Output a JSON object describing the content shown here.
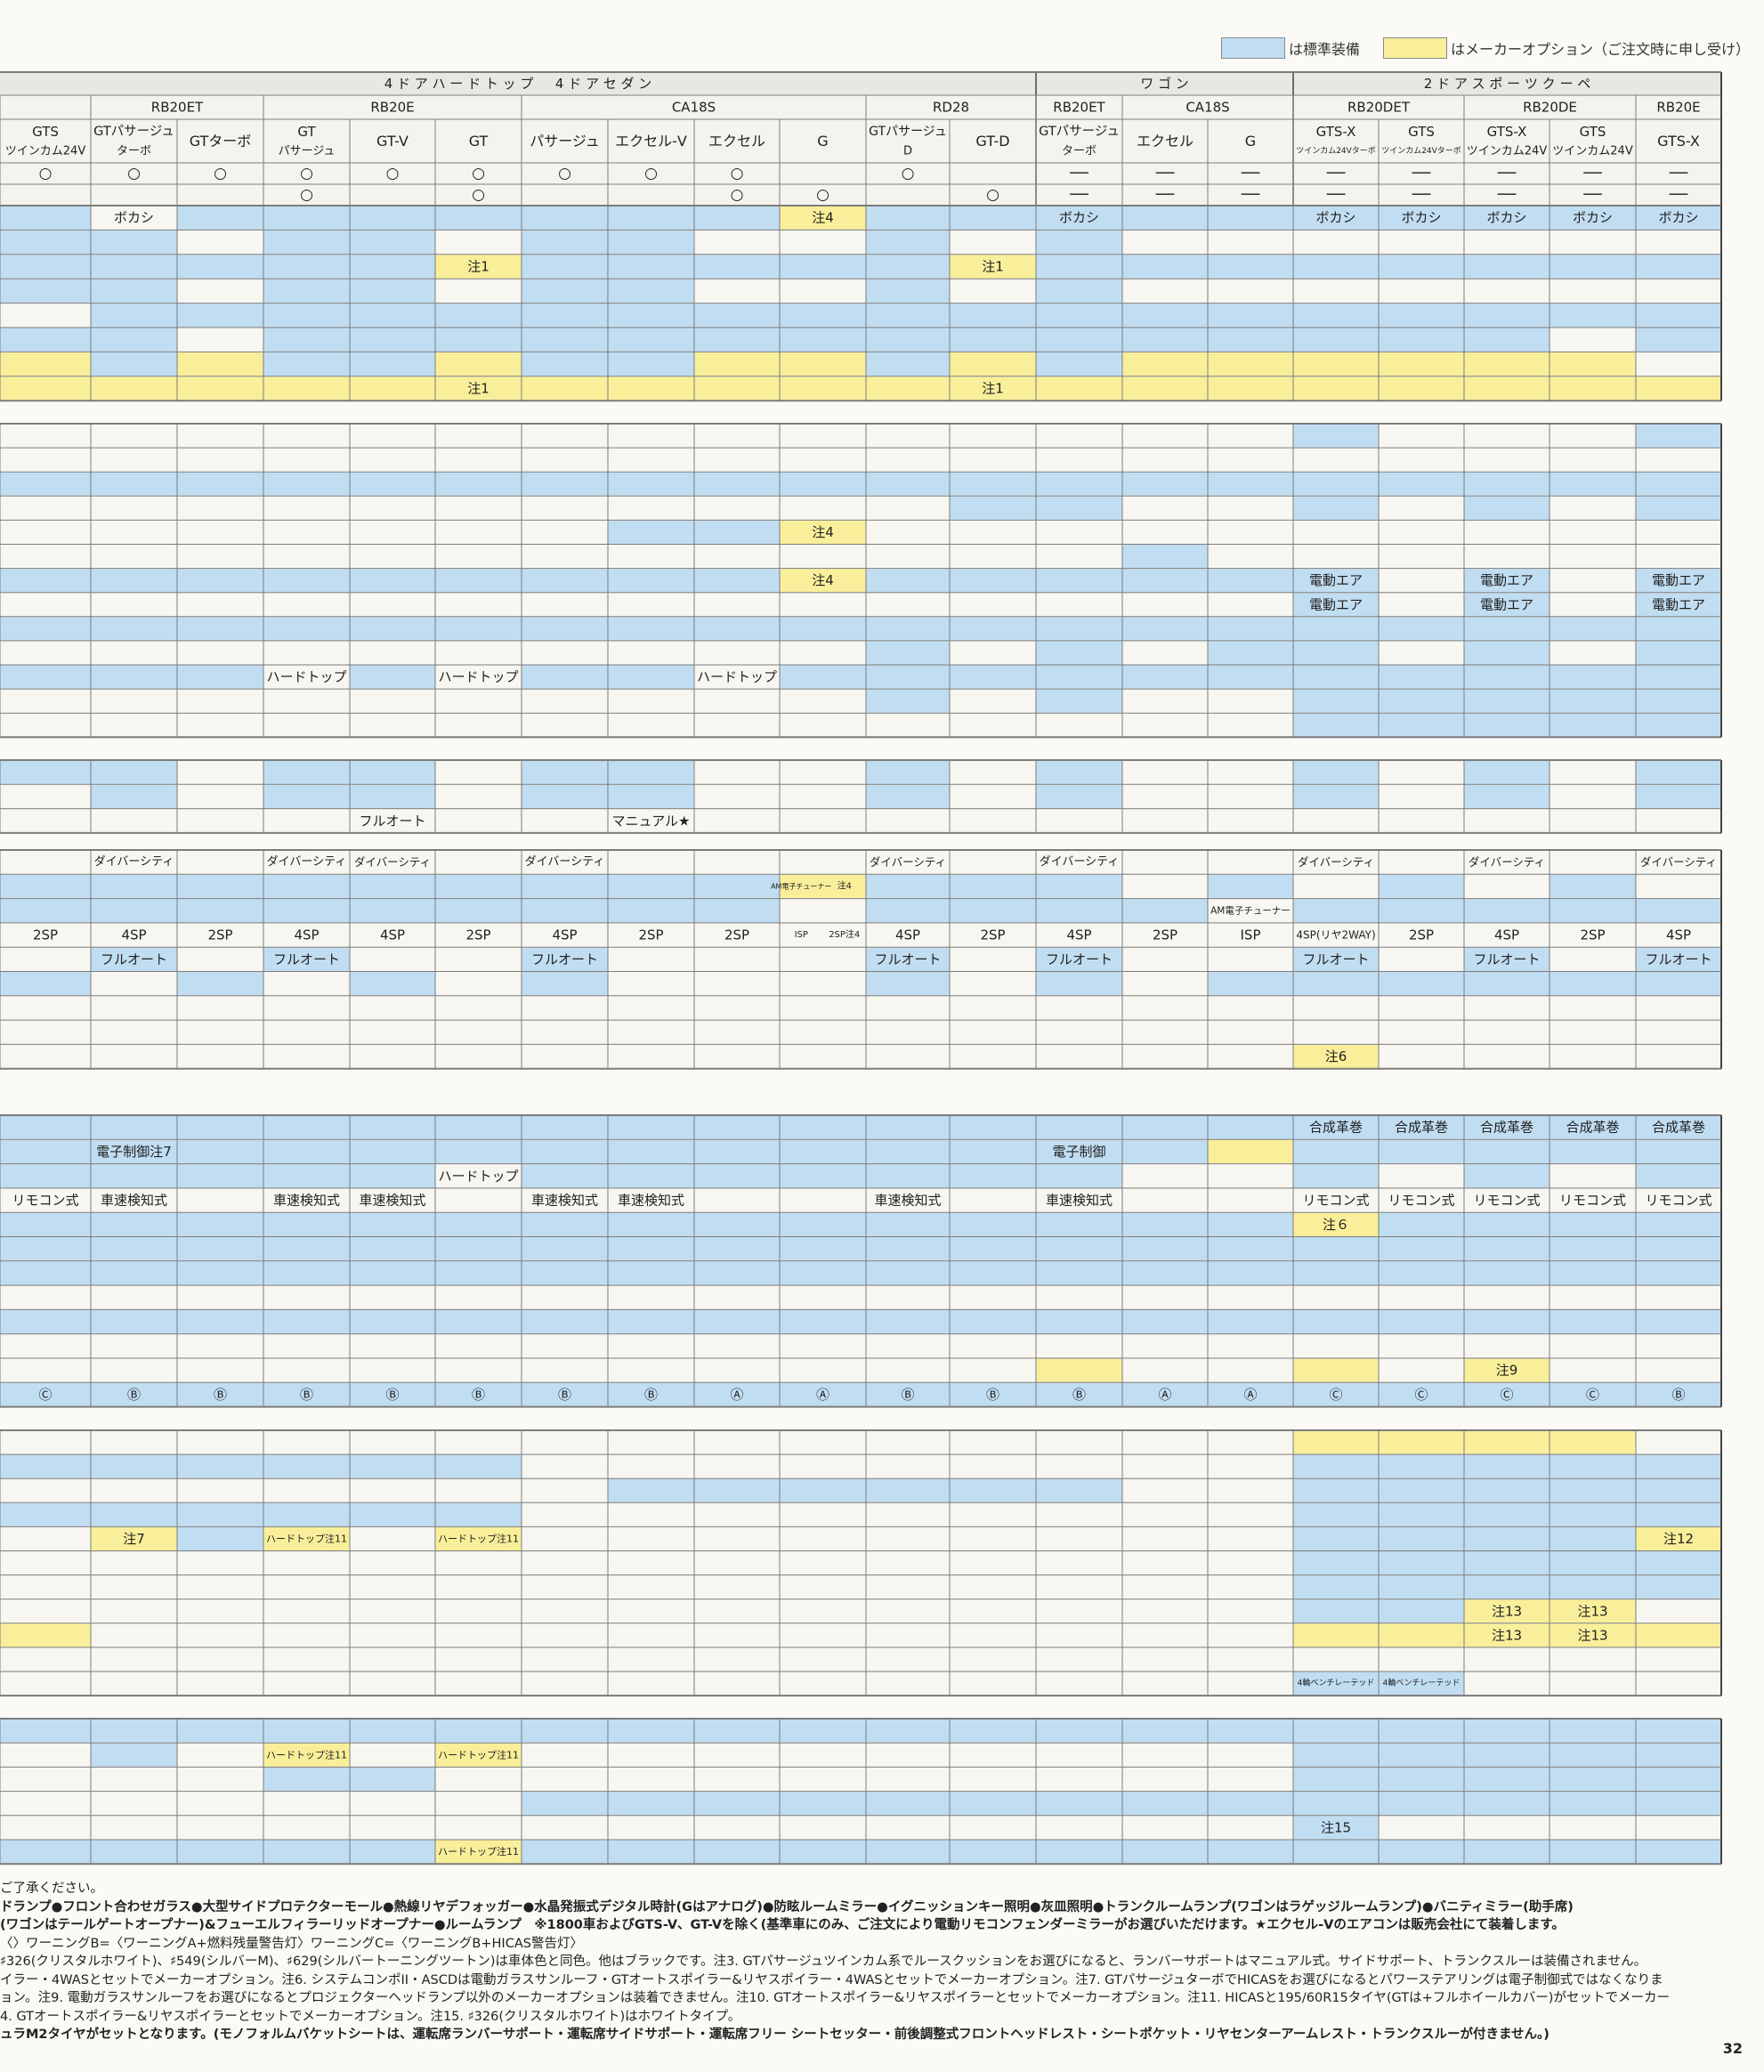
{
  "colors": {
    "standard": "#c1ddf2",
    "option": "#f9ef9a",
    "grid": "#7c7c7c",
    "header": "#f4f3ee"
  },
  "legend": {
    "standard_label": "は標準装備",
    "option_label": "はメーカーオプション（ご注文時に申し受け）"
  },
  "groups": [
    {
      "label": "4ドアハードトップ　4ドアセダン",
      "from": 0,
      "to": 11
    },
    {
      "label": "ワゴン",
      "from": 12,
      "to": 14
    },
    {
      "label": "2ドアスポーツクーペ",
      "from": 15,
      "to": 19
    }
  ],
  "engines": [
    {
      "label": "",
      "from": 0,
      "to": 0
    },
    {
      "label": "RB20ET",
      "from": 1,
      "to": 2
    },
    {
      "label": "RB20E",
      "from": 3,
      "to": 5
    },
    {
      "label": "CA18S",
      "from": 6,
      "to": 9
    },
    {
      "label": "RD28",
      "from": 10,
      "to": 11
    },
    {
      "label": "RB20ET",
      "from": 12,
      "to": 12
    },
    {
      "label": "CA18S",
      "from": 13,
      "to": 14
    },
    {
      "label": "RB20DET",
      "from": 15,
      "to": 16
    },
    {
      "label": "RB20DE",
      "from": 17,
      "to": 18
    },
    {
      "label": "RB20E",
      "from": 19,
      "to": 19
    }
  ],
  "grades": [
    [
      "GTS",
      "ツインカム24V"
    ],
    [
      "GTパサージュ",
      "ターボ"
    ],
    [
      "GTターボ"
    ],
    [
      "GT",
      "パサージュ"
    ],
    [
      "GT-V"
    ],
    [
      "GT"
    ],
    [
      "パサージュ"
    ],
    [
      "エクセル-V"
    ],
    [
      "エクセル"
    ],
    [
      "G"
    ],
    [
      "GTパサージュ",
      "D"
    ],
    [
      "GT-D"
    ],
    [
      "GTパサージュ",
      "ターボ"
    ],
    [
      "エクセル"
    ],
    [
      "G"
    ],
    [
      "GTS-X",
      "ツインカム24Vターボ"
    ],
    [
      "GTS",
      "ツインカム24Vターボ"
    ],
    [
      "GTS-X",
      "ツインカム24V"
    ],
    [
      "GTS",
      "ツインカム24V"
    ],
    [
      "GTS-X"
    ]
  ],
  "body_rows": [
    [
      "○",
      "○",
      "○",
      "○",
      "○",
      "○",
      "○",
      "○",
      "○",
      "",
      "○",
      "",
      "──",
      "──",
      "──",
      "──",
      "──",
      "──",
      "──",
      "──"
    ],
    [
      "",
      "",
      "",
      "○",
      "",
      "○",
      "",
      "",
      "○",
      "○",
      "",
      "○",
      "──",
      "──",
      "──",
      "──",
      "──",
      "──",
      "──",
      "──"
    ]
  ],
  "section1": [
    {
      "fill": "BOBBBBBBBYBBBBBBBBBB",
      "cells": {
        "1": "ボカシ",
        "9": "注4",
        "12": "ボカシ",
        "15": "ボカシ",
        "16": "ボカシ",
        "17": "ボカシ",
        "18": "ボカシ",
        "19": "ボカシ"
      }
    },
    {
      "fill": "BBOBBOBBOOBOBOOOOOOO",
      "cells": {}
    },
    {
      "fill": "BBBBBYBBBBBYBBBBBBBB",
      "cells": {
        "5": "注1",
        "11": "注1"
      }
    },
    {
      "fill": "BBOBBOBBOOBOBOOOOOOO",
      "cells": {}
    },
    {
      "fill": "OBBBBBBBBBBBBBBBBBBB",
      "cells": {}
    },
    {
      "fill": "BBOBBBBBBBBBBBBBBBOB",
      "cells": {}
    },
    {
      "fill": "YBYBBYBBYYBYBYYYYYYO",
      "cells": {}
    },
    {
      "fill": "YYYYYYYYYYYYYYYYYYYY",
      "cells": {
        "5": "注1",
        "11": "注1"
      }
    }
  ],
  "section2": [
    {
      "fill": "OOOOOOOOOOOOOOOBOOOB",
      "cells": {}
    },
    {
      "fill": "OOOOOOOOOOOOOOOOOOOO",
      "cells": {}
    },
    {
      "fill": "BBBBBBBBBBBBBBBBBBBB",
      "cells": {}
    },
    {
      "fill": "OOOOOOOOOOOBBOOBOBOB",
      "cells": {}
    },
    {
      "fill": "OOOOOOOBBYOOOOOOOOOO",
      "cells": {
        "9": "注4"
      }
    },
    {
      "fill": "OOOOOOOOOOOOOBOOOOOO",
      "cells": {}
    },
    {
      "fill": "BBBBBBBBBYBBBBBBOBOB",
      "cells": {
        "9": "注4",
        "15": "電動エア",
        "17": "電動エア",
        "19": "電動エア"
      }
    },
    {
      "fill": "OOOOOOOOOOOOOOOBOBOB",
      "cells": {
        "15": "電動エア",
        "17": "電動エア",
        "19": "電動エア"
      }
    },
    {
      "fill": "BBBBBBBBBBBBBBBBBBBB",
      "cells": {}
    },
    {
      "fill": "OOOOOOOOOOBOBOBBOBOB",
      "cells": {}
    },
    {
      "fill": "BBBOBOBBOBBBBBBBBBBB",
      "cells": {
        "3": "ハードトップ",
        "5": "ハードトップ",
        "8": "ハードトップ"
      }
    },
    {
      "fill": "OOOOOOOOOOBOBOOBBBBB",
      "cells": {}
    },
    {
      "fill": "OOOOOOOOOOOOOOOBBBBB",
      "cells": {}
    }
  ],
  "section3": [
    {
      "fill": "BBOBBOBBOOBOBOOBOBOB",
      "cells": {}
    },
    {
      "fill": "OBOBBOBBOOBOBOOBOBOB",
      "cells": {}
    },
    {
      "fill": "OOOOOOOOOOOOOOOOOOOO",
      "cells": {
        "4": "フルオート",
        "7": "マニュアル★"
      }
    }
  ],
  "section4": [
    {
      "fill": "OOOOOOOOOOOOOOOOOOOO",
      "cells": {
        "1": "ダイバーシティ",
        "3": "ダイバーシティ",
        "4": "ダイバーシティ",
        "6": "ダイバーシティ",
        "10": "ダイバーシティ",
        "12": "ダイバーシティ",
        "15": "ダイバーシティ",
        "17": "ダイバーシティ",
        "19": "ダイバーシティ"
      }
    },
    {
      "fill": "BBBBBBBBBYBBBOBOBOBO",
      "cells": {
        "9": "AM電子チューナー／注4"
      }
    },
    {
      "fill": "BBBBBBBBBOBBBBOBBBBB",
      "cells": {
        "14": "AM電子チューナー"
      }
    },
    {
      "fill": "OOOOOOOOOOOOOOOOOOOO",
      "cells": {
        "0": "2SP",
        "1": "4SP",
        "2": "2SP",
        "3": "4SP",
        "4": "4SP",
        "5": "2SP",
        "6": "4SP",
        "7": "2SP",
        "8": "2SP",
        "9": "ISP／2SP注4",
        "10": "4SP",
        "11": "2SP",
        "12": "4SP",
        "13": "2SP",
        "14": "ISP",
        "15": "4SP(リヤ2WAY)",
        "16": "2SP",
        "17": "4SP",
        "18": "2SP",
        "19": "4SP"
      }
    },
    {
      "fill": "OBOBOOBOOOBOBOOBOBOB",
      "cells": {
        "1": "フルオート",
        "3": "フルオート",
        "6": "フルオート",
        "10": "フルオート",
        "12": "フルオート",
        "15": "フルオート",
        "17": "フルオート",
        "19": "フルオート"
      }
    },
    {
      "fill": "BOBOBOBOOOBOBOBBBBBB",
      "cells": {}
    },
    {
      "fill": "OOOOOOOOOOOOOOOOOOOO",
      "cells": {}
    },
    {
      "fill": "OOOOOOOOOOOOOOOOOOOO",
      "cells": {}
    },
    {
      "fill": "OOOOOOOOOOOOOOOYOOOO",
      "cells": {
        "15": "注6"
      }
    }
  ],
  "section5": [
    {
      "fill": "BBBBBBBBBBBBBBBBBBBB",
      "cells": {
        "15": "合成革巻",
        "16": "合成革巻",
        "17": "合成革巻",
        "18": "合成革巻",
        "19": "合成革巻"
      }
    },
    {
      "fill": "BBBBBBBBBBBBBBYBBBBB",
      "cells": {
        "1": "電子制御注7",
        "12": "電子制御"
      }
    },
    {
      "fill": "BBBBBOBBBBBBBOOBOBOB",
      "cells": {
        "5": "ハードトップ"
      }
    },
    {
      "fill": "OOOOOOOOOOOOOOOOOOOO",
      "cells": {
        "0": "リモコン式",
        "1": "車速検知式",
        "3": "車速検知式",
        "4": "車速検知式",
        "6": "車速検知式",
        "7": "車速検知式",
        "10": "車速検知式",
        "12": "車速検知式",
        "15": "リモコン式",
        "16": "リモコン式",
        "17": "リモコン式",
        "18": "リモコン式",
        "19": "リモコン式"
      }
    },
    {
      "fill": "BBBBBBBBBBBBBBBYBBBB",
      "cells": {
        "15": "注６"
      }
    },
    {
      "fill": "BBBBBBBBBBBBBBBBBBBB",
      "cells": {}
    },
    {
      "fill": "BBBBBBBBBBBBBBBBBBBB",
      "cells": {}
    },
    {
      "fill": "OOOOOOOOOOOOOOOOOOOO",
      "cells": {}
    },
    {
      "fill": "BBBBBBBBBBBBBBBBBBBB",
      "cells": {}
    },
    {
      "fill": "OOOOOOOOOOOOOOOOOOOO",
      "cells": {}
    },
    {
      "fill": "OOOOOOOOOOOOYOOYOYOO",
      "cells": {
        "17": "注9"
      }
    },
    {
      "fill": "BBBBBBBBBBBBBBBBBBBB",
      "cells": {
        "0": "Ⓒ",
        "1": "Ⓑ",
        "2": "Ⓑ",
        "3": "Ⓑ",
        "4": "Ⓑ",
        "5": "Ⓑ",
        "6": "Ⓑ",
        "7": "Ⓑ",
        "8": "Ⓐ",
        "9": "Ⓐ",
        "10": "Ⓑ",
        "11": "Ⓑ",
        "12": "Ⓑ",
        "13": "Ⓐ",
        "14": "Ⓐ",
        "15": "Ⓒ",
        "16": "Ⓒ",
        "17": "Ⓒ",
        "18": "Ⓒ",
        "19": "Ⓑ"
      }
    }
  ],
  "section6": [
    {
      "fill": "OOOOOOOOOOOOOOOYYYYO",
      "cells": {}
    },
    {
      "fill": "BBBBBBOOOOOOOOOBBBBB",
      "cells": {}
    },
    {
      "fill": "OOOOOOOBBBBBBOOBBBBB",
      "cells": {}
    },
    {
      "fill": "BBBBBBOOOOOOOOOBBBBB",
      "cells": {}
    },
    {
      "fill": "OYBYOYOOOOOOOOOBBBBY",
      "cells": {
        "1": "注7",
        "3": "ハードトップ注11",
        "5": "ハードトップ注11",
        "19": "注12"
      }
    },
    {
      "fill": "OOOOOOOOOOOOOOOBBBBB",
      "cells": {}
    },
    {
      "fill": "OOOOOOOOOOOOOOOBBBBB",
      "cells": {}
    },
    {
      "fill": "OOOOOOOOOOOOOOOBBYYO",
      "cells": {
        "17": "注13",
        "18": "注13"
      }
    },
    {
      "fill": "YOOOOOOOOOOOOOOYYYYY",
      "cells": {
        "17": "注13",
        "18": "注13"
      }
    },
    {
      "fill": "OOOOOOOOOOOOOOOOOOOO",
      "cells": {}
    },
    {
      "fill": "OOOOOOOOOOOOOOOBBOOO",
      "cells": {
        "15": "4輪ベンチレーテッド",
        "16": "4輪ベンチレーテッド"
      }
    }
  ],
  "section7": [
    {
      "fill": "BBBBBBBBBBBBBBBBBBBB",
      "cells": {}
    },
    {
      "fill": "OBOYOYOOOOOOOOOBBBBB",
      "cells": {
        "3": "ハードトップ注11",
        "5": "ハードトップ注11"
      }
    },
    {
      "fill": "OOOBBOOOOOOOOOOBBBBB",
      "cells": {}
    },
    {
      "fill": "OOOOOOBBBBBBBBBBBBBB",
      "cells": {}
    },
    {
      "fill": "OOOOOOOOOOOOOOOBOOOO",
      "cells": {
        "15": "注15"
      }
    },
    {
      "fill": "BBBBBYBBBBBBBBBBBBBB",
      "cells": {
        "5": "ハードトップ注11"
      }
    }
  ],
  "notes": [
    "ご了承ください。",
    "ドランプ●フロント合わせガラス●大型サイドプロテクターモール●熱線リヤデフォッガー●水晶発振式デジタル時計(Gはアナログ)●防眩ルームミラー●イグニッションキー照明●灰皿照明●トランクルームランプ(ワゴンはラゲッジルームランプ)●バニティミラー(助手席)",
    "(ワゴンはテールゲートオープナー)&フューエルフィラーリッドオープナー●ルームランプ　※1800車およびGTS-V、GT-Vを除く(基準車にのみ、ご注文により電動リモコンフェンダーミラーがお選びいただけます。★エクセル-Vのエアコンは販売会社にて装着します。",
    "〈〉ワーニングB=〈ワーニングA+燃料残量警告灯〉ワーニングC=〈ワーニングB+HICAS警告灯〉",
    "♯326(クリスタルホワイト)、♯549(シルバーM)、♯629(シルバートーニングツートン)は車体色と同色。他はブラックです。注3. GTパサージュツインカム系でルースクッションをお選びになると、ランバーサポートはマニュアル式。サイドサポート、トランクスルーは装備されません。",
    "イラー・4WASとセットでメーカーオプション。注6. システムコンポII・ASCDは電動ガラスサンルーフ・GTオートスポイラー&リヤスポイラー・4WASとセットでメーカーオプション。注7. GTパサージュターボでHICASをお選びになるとパワーステアリングは電子制御式ではなくなりま",
    "ョン。注9. 電動ガラスサンルーフをお選びになるとプロジェクターヘッドランプ以外のメーカーオプションは装着できません。注10. GTオートスポイラー&リヤスポイラーとセットでメーカーオプション。注11. HICASと195/60R15タイヤ(GTは+フルホイールカバー)がセットでメーカー",
    "4. GTオートスポイラー&リヤスポイラーとセットでメーカーオプション。注15. ♯326(クリスタルホワイト)はホワイトタイプ。",
    "ュラM2タイヤがセットとなります。(モノフォルムバケットシートは、運転席ランバーサポート・運転席サイドサポート・運転席フリー シートセッター・前後調整式フロントヘッドレスト・シートポケット・リヤセンターアームレスト・トランクスルーが付きません。)"
  ],
  "page_number": "32"
}
